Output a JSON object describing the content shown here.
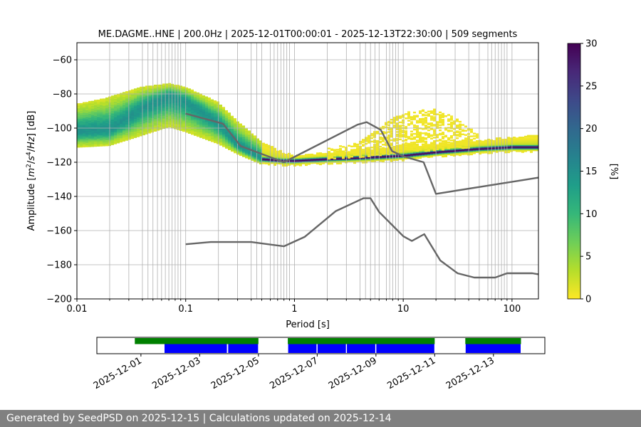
{
  "footer": {
    "text": "Generated by SeedPSD on 2025-12-15 | Calculations updated on 2025-12-14"
  },
  "chart_data": [
    {
      "type": "heatmap",
      "title": "ME.DAGME..HNE | 200.0Hz | 2025-12-01T00:00:01 - 2025-12-13T22:30:00 | 509 segments",
      "xlabel": "Period [s]",
      "ylabel_parts": [
        "Amplitude [",
        "m",
        "2",
        "/",
        "s",
        "4",
        "/",
        "Hz",
        "] [dB]"
      ],
      "xscale": "log",
      "xlim": [
        0.01,
        175
      ],
      "ylim": [
        -200,
        -50
      ],
      "x_ticks": [
        0.01,
        0.1,
        1,
        10,
        100
      ],
      "x_tick_labels": [
        "0.01",
        "0.1",
        "1",
        "10",
        "100"
      ],
      "y_ticks": [
        -200,
        -180,
        -160,
        -140,
        -120,
        -100,
        -80,
        -60
      ],
      "y_tick_labels": [
        "−200",
        "−180",
        "−160",
        "−140",
        "−120",
        "−100",
        "−80",
        "−60"
      ],
      "grid_periods": [
        0.02,
        0.03,
        0.04,
        0.045,
        0.05,
        0.055,
        0.06,
        0.065,
        0.07,
        0.075,
        0.08,
        0.085,
        0.09,
        0.1,
        0.2,
        0.3,
        0.4,
        0.45,
        0.5,
        0.6,
        0.65,
        0.7,
        0.75,
        0.8,
        0.85,
        0.9,
        1,
        2,
        3,
        4,
        4.5,
        5,
        5.5,
        6,
        7,
        7.5,
        8,
        8.5,
        9,
        10,
        20,
        30,
        40,
        50,
        60,
        65,
        70,
        75,
        80,
        85,
        90,
        100
      ],
      "colorbar": {
        "label": "[%]",
        "range": [
          0,
          30
        ],
        "ticks": [
          0,
          5,
          10,
          15,
          20,
          25,
          30
        ],
        "colormap": [
          "#fde725",
          "#b5de2b",
          "#6ece58",
          "#35b779",
          "#1f9e89",
          "#26828e",
          "#31688e",
          "#3e4989",
          "#482878",
          "#440154"
        ]
      },
      "psd_mode": {
        "x": [
          0.01,
          0.02,
          0.04,
          0.07,
          0.1,
          0.2,
          0.3,
          0.5,
          0.8,
          1,
          2,
          5,
          10,
          20,
          50,
          100,
          175
        ],
        "y": [
          -102,
          -101,
          -88,
          -81,
          -84,
          -97,
          -110,
          -118,
          -119,
          -119,
          -118,
          -117,
          -116,
          -114,
          -112,
          -111,
          -111
        ]
      },
      "psd_spread": {
        "x": [
          0.01,
          0.02,
          0.04,
          0.07,
          0.1,
          0.2,
          0.3,
          0.5,
          0.8,
          1,
          2,
          5,
          10,
          20,
          50,
          100,
          175
        ],
        "upper": [
          -86,
          -82,
          -76,
          -74,
          -76,
          -85,
          -96,
          -108,
          -114,
          -116,
          -114,
          -112,
          -110,
          -109,
          -107,
          -105,
          -104
        ],
        "lower": [
          -111,
          -110,
          -104,
          -99,
          -102,
          -109,
          -115,
          -121,
          -122,
          -122,
          -121,
          -120,
          -119,
          -117,
          -115,
          -114,
          -114
        ]
      },
      "microseism_bump": {
        "x": [
          2,
          4,
          6,
          8,
          12,
          20,
          30,
          50
        ],
        "upper": [
          -112,
          -108,
          -100,
          -94,
          -90,
          -89,
          -94,
          -104
        ],
        "lower": [
          -118,
          -117,
          -116,
          -115,
          -114,
          -113,
          -112,
          -111
        ]
      },
      "series": [
        {
          "x": [
            0.1,
            0.22,
            0.32,
            0.8,
            3.8,
            4.6,
            6.2,
            7.9,
            10,
            15.4,
            20,
            175
          ],
          "y": [
            -91.5,
            -97.4,
            -110.5,
            -120,
            -98,
            -96.5,
            -101,
            -113.5,
            -116.5,
            -120,
            -138.5,
            -129
          ]
        },
        {
          "x": [
            0.1,
            0.17,
            0.4,
            0.8,
            1.24,
            2.4,
            4.3,
            5.0,
            6.0,
            10,
            12,
            15.6,
            21.9,
            31.6,
            45,
            70,
            90,
            154,
            175
          ],
          "y": [
            -168,
            -166.7,
            -166.7,
            -169.2,
            -163.7,
            -148.6,
            -141.1,
            -141.1,
            -149.1,
            -163.3,
            -166.1,
            -162.1,
            -177.5,
            -185,
            -187.5,
            -187.5,
            -185,
            -185,
            -185.6
          ]
        }
      ]
    },
    {
      "type": "timeline",
      "x_tick_labels": [
        "2025-12-01",
        "2025-12-03",
        "2025-12-05",
        "2025-12-07",
        "2025-12-09",
        "2025-12-11",
        "2025-12-13"
      ],
      "x_ticks": [
        "2025-12-01",
        "2025-12-03",
        "2025-12-05",
        "2025-12-07",
        "2025-12-09",
        "2025-12-11",
        "2025-12-13"
      ],
      "range": [
        "2025-11-29T12:00",
        "2025-12-14T18:00"
      ],
      "colors": {
        "availability": "#008000",
        "psd": "#0000ff"
      },
      "availability": [
        [
          "2025-11-30T19:00",
          "2025-12-05T00:00"
        ],
        [
          "2025-12-06T00:00",
          "2025-12-11T00:00"
        ],
        [
          "2025-12-12T01:00",
          "2025-12-13T22:30"
        ]
      ],
      "psd_segments": [
        [
          "2025-12-01T19:00",
          "2025-12-03T22:30"
        ],
        [
          "2025-12-03T23:00",
          "2025-12-05T00:00"
        ],
        [
          "2025-12-06T00:00",
          "2025-12-06T23:45"
        ],
        [
          "2025-12-07T00:00",
          "2025-12-07T23:45"
        ],
        [
          "2025-12-08T00:00",
          "2025-12-08T23:45"
        ],
        [
          "2025-12-09T00:00",
          "2025-12-11T00:00"
        ],
        [
          "2025-12-12T01:00",
          "2025-12-13T22:30"
        ]
      ]
    }
  ]
}
